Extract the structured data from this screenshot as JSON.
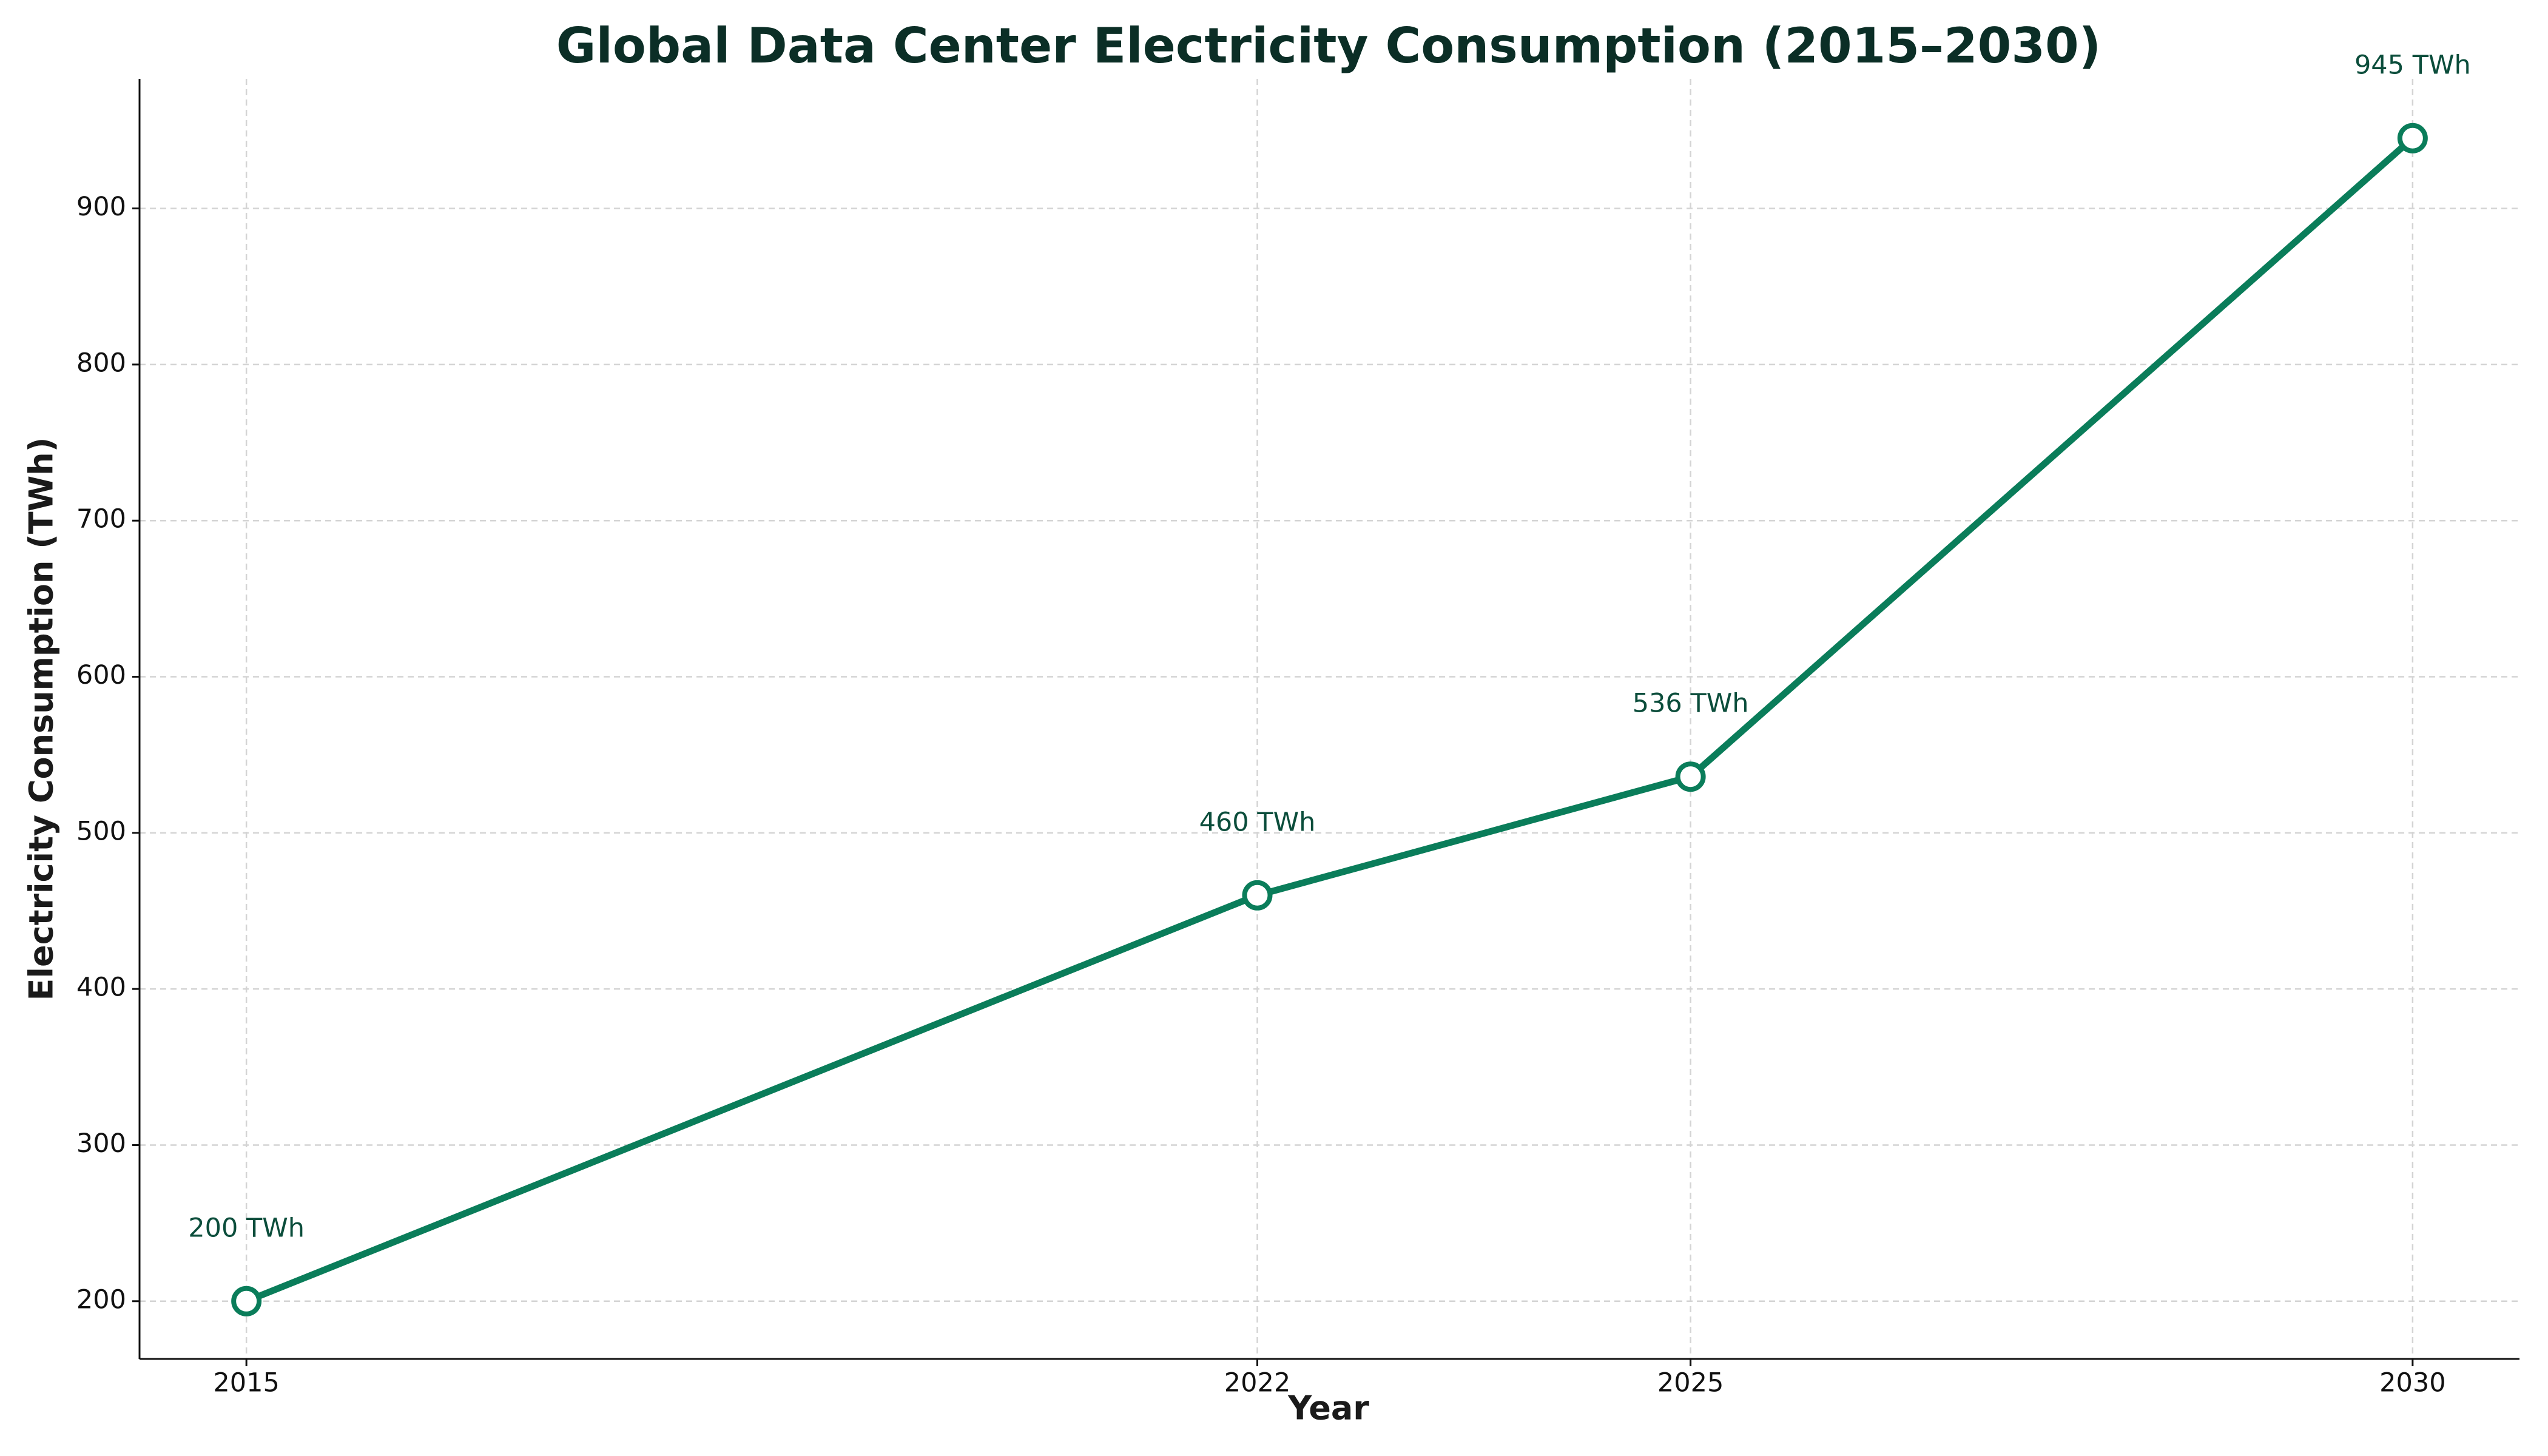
{
  "chart_data": {
    "type": "line",
    "title": "Global Data Center Electricity Consumption (2015–2030)",
    "x_label": "Year",
    "y_label": "Electricity Consumption (TWh)",
    "x": [
      2015,
      2022,
      2025,
      2030
    ],
    "series": [
      {
        "name": "Electricity Consumption",
        "color": "#0a7d5a",
        "values": [
          200,
          460,
          536,
          945
        ],
        "value_labels": [
          "200 TWh",
          "460 TWh",
          "536 TWh",
          "945 TWh"
        ]
      }
    ],
    "xlim": [
      2014.26,
      2030.74
    ],
    "xticks": [
      2015,
      2022,
      2025,
      2030
    ],
    "ylim": [
      163,
      983
    ],
    "yticks": [
      200,
      300,
      400,
      500,
      600,
      700,
      800,
      900
    ],
    "grid": true
  }
}
